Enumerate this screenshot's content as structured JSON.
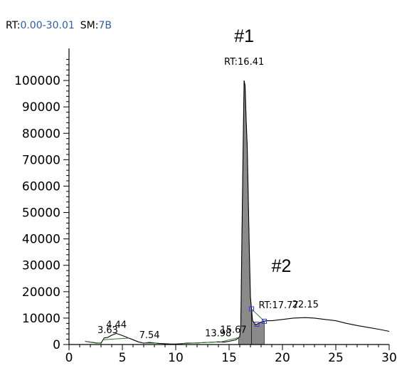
{
  "header": {
    "rt_label": "RT:",
    "rt_range": "0.00-30.01",
    "sm_label": "SM:",
    "sm_value": "7B"
  },
  "colors": {
    "header_value": "#2e5ea8",
    "trace": "#000000",
    "peak_fill": "#8a8a8a",
    "baseline": "#2d7a2d",
    "boundary_box": "#3a3ad0"
  },
  "chart_data": {
    "type": "line",
    "title": "",
    "xlabel": "",
    "ylabel": "",
    "xlim": [
      0,
      30
    ],
    "ylim": [
      0,
      110000
    ],
    "x_ticks": [
      "0",
      "5",
      "10",
      "15",
      "20",
      "25",
      "30"
    ],
    "y_ticks": [
      "0",
      "10000",
      "20000",
      "30000",
      "40000",
      "50000",
      "60000",
      "70000",
      "80000",
      "90000",
      "100000"
    ],
    "grid": false,
    "series": [
      {
        "x": [
          1.5,
          2.0,
          2.5,
          3.0,
          3.3,
          3.63,
          4.0,
          4.44,
          5.0,
          5.5,
          6.0,
          6.5,
          7.0,
          7.54,
          8.0,
          8.5,
          9.0,
          9.5,
          10.0,
          10.5,
          11.0,
          12.0,
          13.0,
          13.98,
          14.5,
          15.0,
          15.67,
          16.0,
          16.1,
          16.2,
          16.3,
          16.41,
          16.5,
          16.6,
          16.7,
          16.8,
          16.9,
          17.0,
          17.2,
          17.5,
          17.77,
          18.0,
          18.5,
          19.0,
          20.0,
          21.0,
          22.15,
          23.0,
          24.0,
          25.0,
          26.0,
          27.0,
          28.0,
          29.0,
          30.0
        ],
        "y": [
          1200,
          900,
          600,
          500,
          2500,
          2700,
          3500,
          4200,
          3400,
          2600,
          1800,
          1000,
          500,
          800,
          600,
          400,
          300,
          200,
          200,
          300,
          500,
          600,
          800,
          1000,
          900,
          1200,
          1800,
          3000,
          8000,
          40000,
          70000,
          100000,
          98000,
          85000,
          75000,
          55000,
          35000,
          18000,
          9000,
          7500,
          8000,
          8500,
          9000,
          9000,
          9500,
          10000,
          10200,
          10000,
          9500,
          9000,
          8000,
          7200,
          6500,
          5800,
          5000
        ]
      }
    ],
    "filled_peaks": [
      {
        "x_start": 15.9,
        "x_end": 17.1,
        "label": "#1"
      },
      {
        "x_start": 17.1,
        "x_end": 18.3,
        "label": "#2"
      }
    ],
    "annotations": [
      {
        "text": "#1",
        "x": 16.41,
        "y": 100000,
        "kind": "marker"
      },
      {
        "text": "RT:16.41",
        "x": 16.41,
        "y": 100000,
        "kind": "label"
      },
      {
        "text": "#2",
        "x": 18.3,
        "y": 27000,
        "kind": "marker"
      },
      {
        "text": "RT:17.77",
        "x": 17.77,
        "y": 11000,
        "kind": "label"
      },
      {
        "text": "22.15",
        "x": 22.15,
        "y": 10200,
        "kind": "label"
      },
      {
        "text": "3.63",
        "x": 3.63,
        "y": 2700,
        "kind": "label"
      },
      {
        "text": "4.44",
        "x": 4.44,
        "y": 4200,
        "kind": "label"
      },
      {
        "text": "7.54",
        "x": 7.54,
        "y": 800,
        "kind": "label"
      },
      {
        "text": "13.98",
        "x": 13.98,
        "y": 1000,
        "kind": "label"
      },
      {
        "text": "15.67",
        "x": 15.67,
        "y": 1800,
        "kind": "label"
      }
    ]
  }
}
